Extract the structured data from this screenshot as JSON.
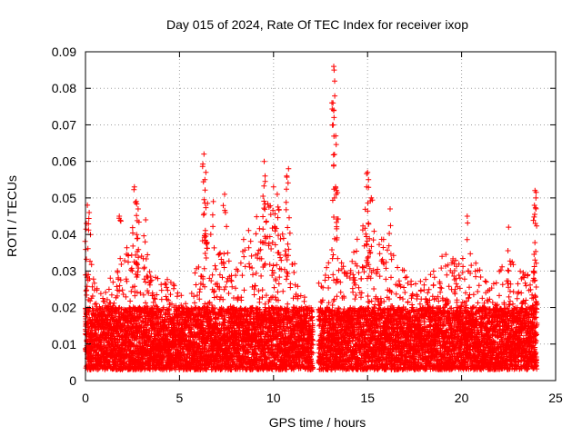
{
  "chart_data": {
    "type": "scatter",
    "title": "Day 015 of 2024, Rate Of TEC Index for receiver ixop",
    "xlabel": "GPS time / hours",
    "ylabel": "ROTI / TECUs",
    "xlim": [
      0,
      25
    ],
    "ylim": [
      0,
      0.09
    ],
    "x_ticks": [
      "0",
      "5",
      "10",
      "15",
      "20",
      "25"
    ],
    "y_ticks": [
      "0",
      "0.01",
      "0.02",
      "0.03",
      "0.04",
      "0.05",
      "0.06",
      "0.07",
      "0.08",
      "0.09"
    ],
    "grid": true,
    "marker": "+",
    "color": "#ff0000",
    "gap": [
      12.1,
      12.4
    ],
    "series": [
      {
        "name": "ROTI",
        "baseline_range": [
          0.003,
          0.02
        ],
        "envelope": [
          {
            "x": 0.0,
            "max": 0.035
          },
          {
            "x": 0.5,
            "max": 0.03
          },
          {
            "x": 1.0,
            "max": 0.025
          },
          {
            "x": 1.5,
            "max": 0.03
          },
          {
            "x": 2.0,
            "max": 0.035
          },
          {
            "x": 2.5,
            "max": 0.04
          },
          {
            "x": 3.0,
            "max": 0.035
          },
          {
            "x": 3.5,
            "max": 0.03
          },
          {
            "x": 4.0,
            "max": 0.028
          },
          {
            "x": 4.5,
            "max": 0.028
          },
          {
            "x": 5.0,
            "max": 0.025
          },
          {
            "x": 5.5,
            "max": 0.02
          },
          {
            "x": 6.0,
            "max": 0.035
          },
          {
            "x": 6.5,
            "max": 0.045
          },
          {
            "x": 7.0,
            "max": 0.04
          },
          {
            "x": 7.5,
            "max": 0.035
          },
          {
            "x": 8.0,
            "max": 0.035
          },
          {
            "x": 8.5,
            "max": 0.04
          },
          {
            "x": 9.0,
            "max": 0.045
          },
          {
            "x": 9.5,
            "max": 0.05
          },
          {
            "x": 10.0,
            "max": 0.05
          },
          {
            "x": 10.5,
            "max": 0.045
          },
          {
            "x": 11.0,
            "max": 0.035
          },
          {
            "x": 11.5,
            "max": 0.025
          },
          {
            "x": 12.0,
            "max": 0.02
          },
          {
            "x": 12.5,
            "max": 0.03
          },
          {
            "x": 13.0,
            "max": 0.035
          },
          {
            "x": 13.5,
            "max": 0.035
          },
          {
            "x": 14.0,
            "max": 0.03
          },
          {
            "x": 14.5,
            "max": 0.04
          },
          {
            "x": 15.0,
            "max": 0.045
          },
          {
            "x": 15.5,
            "max": 0.04
          },
          {
            "x": 16.0,
            "max": 0.04
          },
          {
            "x": 16.5,
            "max": 0.035
          },
          {
            "x": 17.0,
            "max": 0.03
          },
          {
            "x": 17.5,
            "max": 0.028
          },
          {
            "x": 18.0,
            "max": 0.028
          },
          {
            "x": 18.5,
            "max": 0.03
          },
          {
            "x": 19.0,
            "max": 0.035
          },
          {
            "x": 19.5,
            "max": 0.035
          },
          {
            "x": 20.0,
            "max": 0.035
          },
          {
            "x": 20.5,
            "max": 0.035
          },
          {
            "x": 21.0,
            "max": 0.03
          },
          {
            "x": 21.5,
            "max": 0.028
          },
          {
            "x": 22.0,
            "max": 0.03
          },
          {
            "x": 22.5,
            "max": 0.035
          },
          {
            "x": 23.0,
            "max": 0.03
          },
          {
            "x": 23.5,
            "max": 0.03
          },
          {
            "x": 24.0,
            "max": 0.03
          }
        ],
        "peaks": [
          {
            "x": 0.1,
            "y": 0.048
          },
          {
            "x": 0.2,
            "y": 0.046
          },
          {
            "x": 0.05,
            "y": 0.043
          },
          {
            "x": 1.8,
            "y": 0.045
          },
          {
            "x": 2.6,
            "y": 0.053
          },
          {
            "x": 2.7,
            "y": 0.049
          },
          {
            "x": 2.8,
            "y": 0.047
          },
          {
            "x": 3.2,
            "y": 0.044
          },
          {
            "x": 6.3,
            "y": 0.062
          },
          {
            "x": 6.4,
            "y": 0.057
          },
          {
            "x": 6.35,
            "y": 0.055
          },
          {
            "x": 6.8,
            "y": 0.049
          },
          {
            "x": 7.4,
            "y": 0.051
          },
          {
            "x": 9.5,
            "y": 0.06
          },
          {
            "x": 9.55,
            "y": 0.056
          },
          {
            "x": 10.0,
            "y": 0.053
          },
          {
            "x": 10.2,
            "y": 0.051
          },
          {
            "x": 10.8,
            "y": 0.058
          },
          {
            "x": 10.7,
            "y": 0.056
          },
          {
            "x": 13.2,
            "y": 0.086
          },
          {
            "x": 13.22,
            "y": 0.085
          },
          {
            "x": 13.25,
            "y": 0.082
          },
          {
            "x": 13.2,
            "y": 0.059
          },
          {
            "x": 13.3,
            "y": 0.053
          },
          {
            "x": 13.35,
            "y": 0.052
          },
          {
            "x": 15.0,
            "y": 0.057
          },
          {
            "x": 15.05,
            "y": 0.055
          },
          {
            "x": 14.95,
            "y": 0.053
          },
          {
            "x": 15.2,
            "y": 0.05
          },
          {
            "x": 16.2,
            "y": 0.047
          },
          {
            "x": 20.3,
            "y": 0.045
          },
          {
            "x": 22.5,
            "y": 0.042
          },
          {
            "x": 23.9,
            "y": 0.052
          },
          {
            "x": 23.95,
            "y": 0.05
          },
          {
            "x": 23.92,
            "y": 0.043
          },
          {
            "x": 23.9,
            "y": 0.033
          }
        ]
      }
    ]
  }
}
